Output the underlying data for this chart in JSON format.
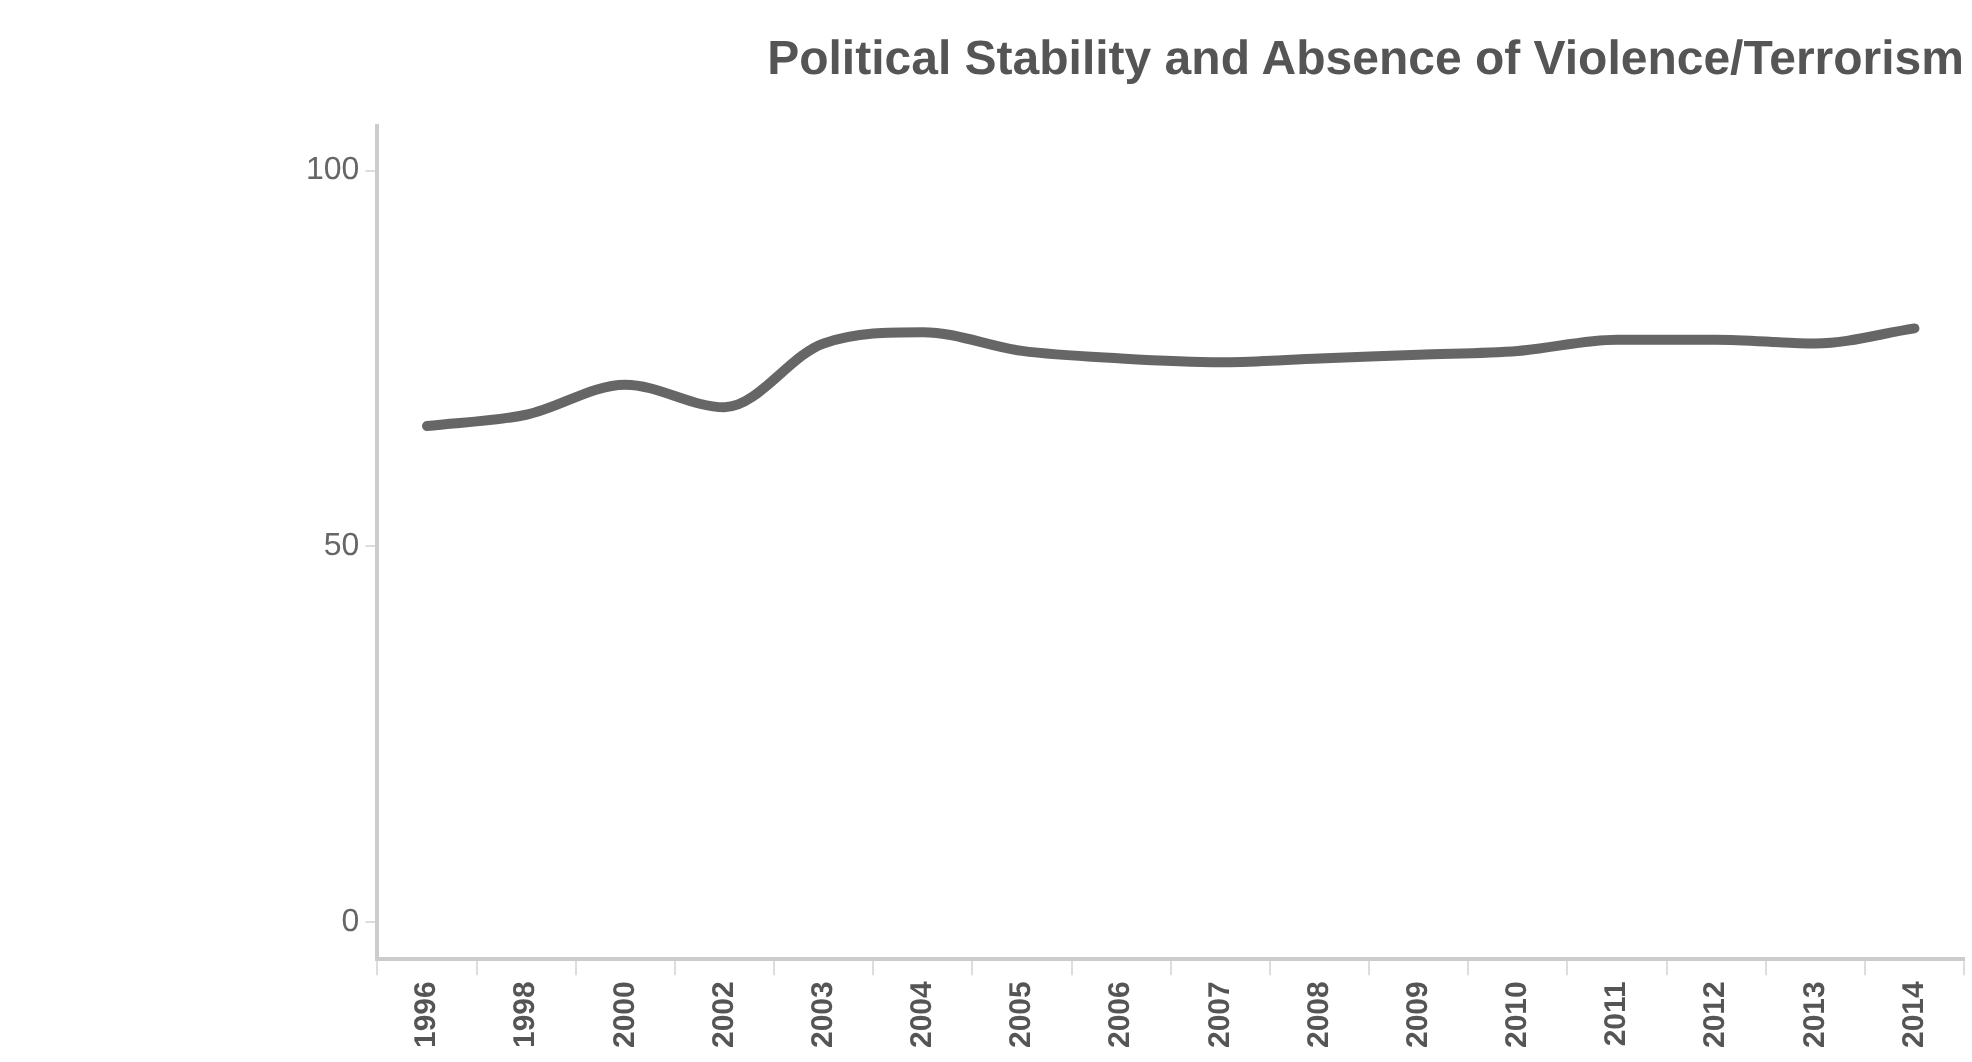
{
  "chart_data": {
    "type": "line",
    "title": "Political Stability and Absence of Violence/Terrorism",
    "categories": [
      "1996",
      "1998",
      "2000",
      "2002",
      "2003",
      "2004",
      "2005",
      "2006",
      "2007",
      "2008",
      "2009",
      "2010",
      "2011",
      "2012",
      "2013",
      "2014"
    ],
    "series": [
      {
        "color": "#666666",
        "values": [
          66,
          67.5,
          71.5,
          68.5,
          77,
          78.5,
          76,
          75,
          74.5,
          75,
          75.5,
          76,
          77.5,
          77.5,
          77,
          79
        ]
      }
    ],
    "ylim": [
      -5,
      106
    ],
    "yticks": [
      0,
      50,
      100
    ],
    "grid": false,
    "legend": false,
    "marker": "none",
    "line_style": "solid"
  }
}
